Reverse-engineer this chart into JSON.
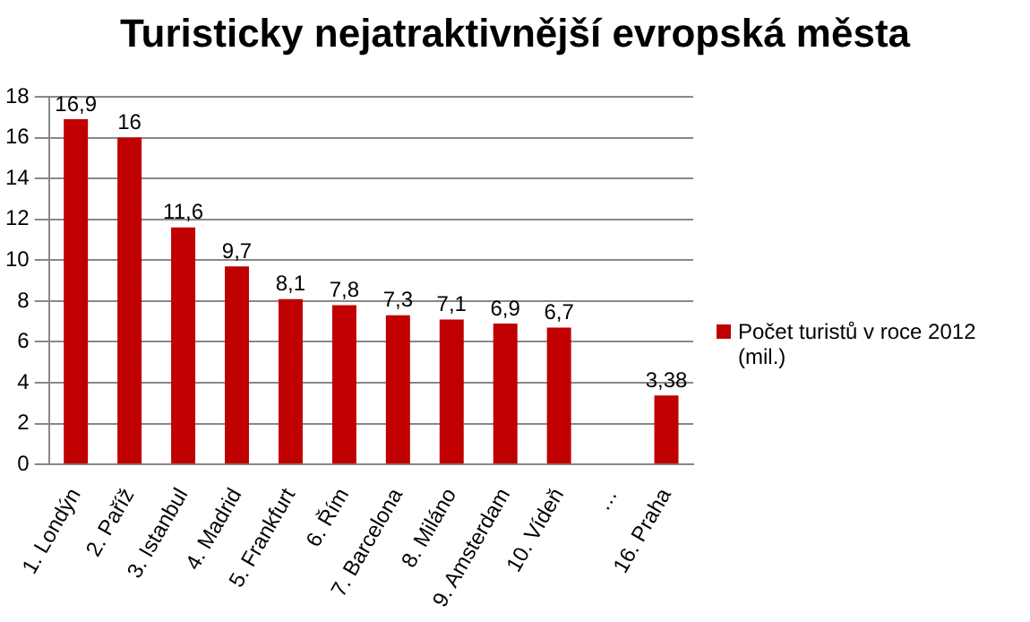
{
  "chart_data": {
    "type": "bar",
    "title": "Turisticky nejatraktivnější evropská města",
    "categories": [
      "1. Londýn",
      "2. Paříž",
      "3. Istanbul",
      "4. Madrid",
      "5. Frankfurt",
      "6. Řím",
      "7. Barcelona",
      "8. Miláno",
      "9. Amsterdam",
      "10. Vídeň",
      "…",
      "16. Praha"
    ],
    "series": [
      {
        "name": "Počet turistů v roce 2012 (mil.)",
        "color": "#c00000",
        "values": [
          16.9,
          16,
          11.6,
          9.7,
          8.1,
          7.8,
          7.3,
          7.1,
          6.9,
          6.7,
          null,
          3.38
        ],
        "value_labels": [
          "16,9",
          "16",
          "11,6",
          "9,7",
          "8,1",
          "7,8",
          "7,3",
          "7,1",
          "6,9",
          "6,7",
          null,
          "3,38"
        ]
      }
    ],
    "ylim": [
      0,
      18
    ],
    "yticks": [
      0,
      2,
      4,
      6,
      8,
      10,
      12,
      14,
      16,
      18
    ],
    "grid": "y",
    "legend": "right"
  }
}
